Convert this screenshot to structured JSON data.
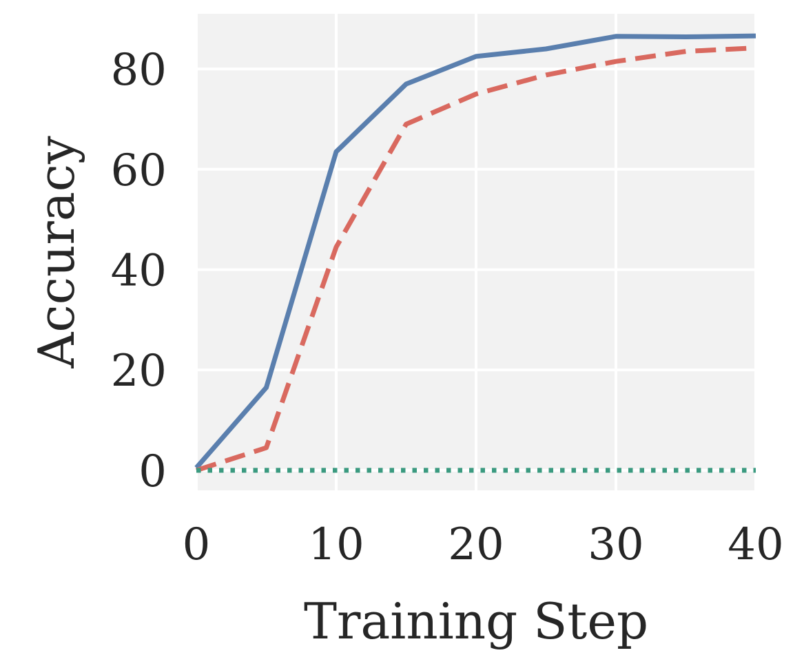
{
  "chart_data": {
    "type": "line",
    "title": "",
    "xlabel": "Training Step",
    "ylabel": "Accuracy",
    "xlim": [
      0,
      40
    ],
    "ylim": [
      -4,
      91
    ],
    "xticks": [
      0,
      10,
      20,
      30,
      40
    ],
    "yticks": [
      0,
      20,
      40,
      60,
      80
    ],
    "grid": true,
    "background": "#f2f2f2",
    "series": [
      {
        "color": "#5a7fae",
        "style": "solid",
        "x": [
          0,
          5,
          10,
          15,
          20,
          25,
          30,
          35,
          40
        ],
        "y": [
          0.5,
          16.5,
          63.5,
          77,
          82.5,
          84,
          86.5,
          86.4,
          86.6
        ]
      },
      {
        "color": "#d9695f",
        "style": "dashed",
        "x": [
          0,
          5,
          10,
          15,
          20,
          25,
          30,
          35,
          40
        ],
        "y": [
          0,
          4.5,
          44.5,
          69,
          75,
          78.8,
          81.5,
          83.5,
          84.2
        ]
      },
      {
        "color": "#3b9a80",
        "style": "dotted",
        "x": [
          0,
          5,
          10,
          15,
          20,
          25,
          30,
          35,
          40
        ],
        "y": [
          0,
          0,
          0,
          0,
          0,
          0,
          0,
          0,
          0
        ]
      }
    ]
  }
}
